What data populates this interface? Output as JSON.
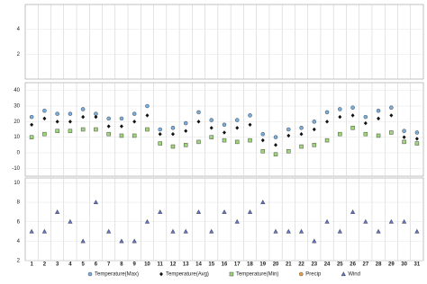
{
  "chart_data": [
    {
      "type": "scatter",
      "ylim": [
        0,
        6
      ],
      "yticks": [
        2,
        4
      ],
      "series": [
        {
          "name": "Precip",
          "color": "#f0a040",
          "marker": "circle",
          "values": [
            null,
            null,
            null,
            null,
            null,
            null,
            null,
            null,
            null,
            null,
            null,
            null,
            null,
            null,
            null,
            null,
            null,
            null,
            null,
            null,
            null,
            null,
            null,
            null,
            null,
            null,
            null,
            null,
            null,
            null,
            null
          ]
        }
      ]
    },
    {
      "type": "scatter",
      "ylim": [
        -15,
        45
      ],
      "yticks": [
        -10,
        0,
        10,
        20,
        30,
        40
      ],
      "series": [
        {
          "name": "Temperature(Max)",
          "color": "#7aaedc",
          "marker": "circle",
          "values": [
            23,
            27,
            25,
            25,
            28,
            25,
            22,
            22,
            25,
            30,
            15,
            16,
            19,
            26,
            21,
            18,
            21,
            24,
            12,
            10,
            15,
            16,
            20,
            26,
            28,
            29,
            23,
            27,
            29,
            14,
            13
          ]
        },
        {
          "name": "Temperature(Avg)",
          "color": "#111111",
          "marker": "diamond",
          "values": [
            18,
            22,
            20,
            20,
            23,
            23,
            17,
            17,
            20,
            24,
            12,
            12,
            14,
            20,
            16,
            13,
            16,
            18,
            8,
            5,
            11,
            12,
            15,
            20,
            23,
            24,
            19,
            22,
            24,
            10,
            9
          ]
        },
        {
          "name": "Temperature(Min)",
          "color": "#9fd67a",
          "marker": "square",
          "values": [
            10,
            12,
            14,
            14,
            15,
            15,
            12,
            11,
            11,
            15,
            6,
            4,
            5,
            7,
            10,
            8,
            7,
            8,
            1,
            -1,
            1,
            4,
            5,
            8,
            12,
            16,
            12,
            11,
            13,
            7,
            6
          ]
        }
      ]
    },
    {
      "type": "scatter",
      "ylim": [
        2,
        10.5
      ],
      "yticks": [
        2,
        4,
        6,
        8,
        10
      ],
      "x": [
        1,
        2,
        3,
        4,
        5,
        6,
        7,
        8,
        9,
        10,
        11,
        12,
        13,
        14,
        15,
        16,
        17,
        18,
        19,
        20,
        21,
        22,
        23,
        24,
        25,
        26,
        27,
        28,
        29,
        30,
        31
      ],
      "series": [
        {
          "name": "Wind",
          "color": "#6677cc",
          "marker": "triangle",
          "values": [
            5,
            5,
            7,
            6,
            4,
            8,
            5,
            4,
            4,
            6,
            7,
            5,
            5,
            7,
            5,
            7,
            6,
            7,
            8,
            5,
            5,
            5,
            4,
            6,
            5,
            7,
            6,
            5,
            6,
            6,
            5
          ]
        }
      ]
    }
  ]
}
